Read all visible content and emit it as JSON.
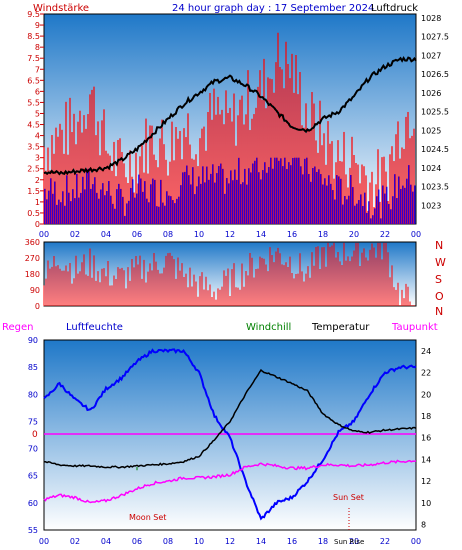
{
  "header": {
    "title": "24 hour graph day : 17 September 2024",
    "left_label": "Windstärke",
    "right_label": "Luftdruck"
  },
  "bottom_legend": {
    "regen": "Regen",
    "luftfeuchte": "Luftfeuchte",
    "windchill": "Windchill",
    "temperatur": "Temperatur",
    "taupunkt": "Taupunkt"
  },
  "direction_labels": [
    "N",
    "W",
    "S",
    "O",
    "N"
  ],
  "annotations": {
    "moon_set": "Moon Set",
    "sun_set": "Sun Set",
    "sun_rise": "Sun Rise",
    "regen_zero": "0"
  },
  "colors": {
    "wind": "#ff0000",
    "gust": "#0000ff",
    "pressure": "#000000",
    "humidity": "#0000ff",
    "temperature": "#000000",
    "dewpoint": "#ff00ff",
    "windchill": "#008000",
    "rain": "#ff00ff",
    "panel_top": "#1f78c8",
    "panel_bottom": "#ffffff"
  },
  "chart_data": [
    {
      "type": "line",
      "name": "wind-pressure",
      "x_ticks": [
        "00",
        "02",
        "04",
        "06",
        "08",
        "10",
        "12",
        "14",
        "16",
        "18",
        "20",
        "22",
        "00"
      ],
      "y_left_ticks": [
        "0",
        "0.5",
        "1",
        "1.5",
        "2",
        "2.5",
        "3",
        "3.5",
        "4",
        "4.5",
        "5",
        "5.5",
        "6",
        "6.5",
        "7",
        "7.5",
        "8",
        "8.5",
        "9",
        "9.5"
      ],
      "y_right_ticks": [
        "1023",
        "1023.5",
        "1024",
        "1024.5",
        "1025",
        "1025.5",
        "1026",
        "1026.5",
        "1027",
        "1027.5",
        "1028"
      ],
      "wind_ylim": [
        0,
        9.5
      ],
      "pressure_ylim": [
        1022.5,
        1028.1
      ],
      "pressure": {
        "x": [
          0,
          1,
          2,
          3,
          4,
          5,
          6,
          7,
          8,
          9,
          10,
          11,
          12,
          13,
          14,
          15,
          16,
          17,
          18,
          19,
          20,
          21,
          22,
          23,
          24
        ],
        "y": [
          1023.9,
          1023.85,
          1023.9,
          1023.95,
          1024.0,
          1024.2,
          1024.5,
          1024.9,
          1025.3,
          1025.7,
          1026.0,
          1026.3,
          1026.4,
          1026.2,
          1025.9,
          1025.5,
          1025.1,
          1025.0,
          1025.3,
          1025.5,
          1025.9,
          1026.4,
          1026.7,
          1026.9,
          1026.9
        ]
      },
      "wind": {
        "x": [
          0,
          1,
          2,
          3,
          4,
          5,
          6,
          7,
          8,
          9,
          10,
          11,
          12,
          13,
          14,
          15,
          16,
          17,
          18,
          19,
          20,
          21,
          22,
          23,
          24
        ],
        "y": [
          3.5,
          4.0,
          4.5,
          6.0,
          3.5,
          2.5,
          3.0,
          4.0,
          3.5,
          4.5,
          4.0,
          5.0,
          4.5,
          5.5,
          6.0,
          7.5,
          7.0,
          5.0,
          4.0,
          3.0,
          3.0,
          2.0,
          2.0,
          4.5,
          5.5
        ]
      },
      "gust": {
        "x": [
          0,
          1,
          2,
          3,
          4,
          5,
          6,
          7,
          8,
          9,
          10,
          11,
          12,
          13,
          14,
          15,
          16,
          17,
          18,
          19,
          20,
          21,
          22,
          23,
          24
        ],
        "y": [
          1.5,
          1.5,
          1.5,
          2.0,
          1.5,
          1.0,
          1.5,
          1.5,
          1.5,
          2.0,
          2.0,
          2.0,
          2.0,
          2.5,
          2.5,
          3.5,
          3.0,
          2.5,
          2.0,
          1.5,
          1.5,
          1.0,
          1.0,
          2.0,
          2.0
        ]
      }
    },
    {
      "type": "area",
      "name": "wind-direction",
      "y_ticks": [
        "0",
        "90",
        "180",
        "270",
        "360"
      ],
      "ylim": [
        0,
        360
      ],
      "x": [
        0,
        1,
        2,
        3,
        4,
        5,
        6,
        7,
        8,
        9,
        10,
        11,
        12,
        13,
        14,
        15,
        16,
        17,
        18,
        19,
        20,
        21,
        22,
        23,
        24
      ],
      "y": [
        150,
        280,
        200,
        240,
        180,
        160,
        200,
        230,
        260,
        180,
        120,
        90,
        140,
        200,
        260,
        300,
        250,
        180,
        300,
        300,
        310,
        320,
        340,
        50,
        30
      ]
    },
    {
      "type": "line",
      "name": "temperature-humidity",
      "y_left_ticks": [
        "55",
        "60",
        "65",
        "70",
        "75",
        "80",
        "85",
        "90"
      ],
      "y_right_ticks": [
        "8",
        "10",
        "12",
        "14",
        "16",
        "18",
        "20",
        "22",
        "24"
      ],
      "humidity_ylim": [
        55,
        90
      ],
      "temperature_ylim": [
        7.5,
        25
      ],
      "x": [
        0,
        1,
        2,
        3,
        4,
        5,
        6,
        7,
        8,
        9,
        10,
        11,
        12,
        13,
        14,
        15,
        16,
        17,
        18,
        19,
        20,
        21,
        22,
        23,
        24
      ],
      "humidity": [
        79,
        82,
        79,
        77,
        81,
        83,
        86,
        88,
        88,
        88,
        84,
        76,
        72,
        64,
        57,
        60,
        61,
        64,
        68,
        73,
        75,
        80,
        84,
        85,
        85
      ],
      "temperature": [
        13.8,
        13.5,
        13.4,
        13.4,
        13.3,
        13.3,
        13.4,
        13.5,
        13.6,
        13.8,
        14.3,
        15.8,
        17.5,
        20.0,
        22.2,
        21.6,
        21.0,
        20.3,
        18.2,
        17.2,
        16.6,
        16.5,
        16.7,
        16.8,
        16.9
      ],
      "dewpoint": [
        10.3,
        10.7,
        10.5,
        10.0,
        10.2,
        10.7,
        11.3,
        11.8,
        12.0,
        12.3,
        12.3,
        12.4,
        12.6,
        13.3,
        13.6,
        13.4,
        13.2,
        13.2,
        13.5,
        13.5,
        13.4,
        13.5,
        13.7,
        13.8,
        13.9
      ],
      "rain": [
        0,
        0,
        0,
        0,
        0,
        0,
        0,
        0,
        0,
        0,
        0,
        0,
        0,
        0,
        0,
        0,
        0,
        0,
        0,
        0,
        0,
        0,
        0,
        0,
        0
      ],
      "events": [
        {
          "label": "Moon Set",
          "x": 3.5
        },
        {
          "label": "Sun Set",
          "x": 19.1
        },
        {
          "label": "Sun Rise",
          "x": 20.1
        }
      ]
    }
  ]
}
